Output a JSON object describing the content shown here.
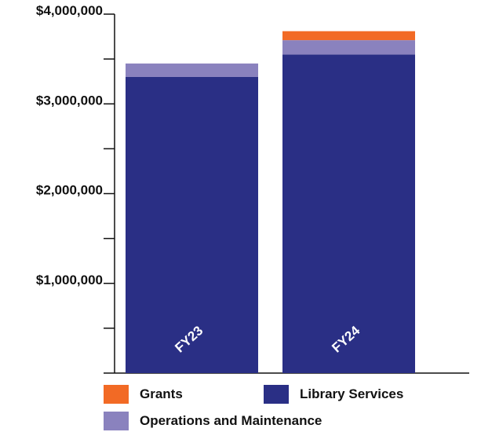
{
  "chart_data": {
    "type": "bar",
    "stacked": true,
    "categories": [
      "FY23",
      "FY24"
    ],
    "series": [
      {
        "name": "Library Services",
        "color": "#2a2f85",
        "values": [
          3300000,
          3550000
        ]
      },
      {
        "name": "Operations and Maintenance",
        "color": "#8a82be",
        "values": [
          150000,
          160000
        ]
      },
      {
        "name": "Grants",
        "color": "#f26a25",
        "values": [
          0,
          100000
        ]
      }
    ],
    "ylim": [
      0,
      4000000
    ],
    "yticks": [
      1000000,
      2000000,
      3000000,
      4000000
    ],
    "ytick_labels": [
      "$1,000,000",
      "$2,000,000",
      "$3,000,000",
      "$4,000,000"
    ],
    "minor_ticks": [
      500000,
      1500000,
      2500000,
      3500000
    ],
    "legend": {
      "placement": "bottom",
      "entries": [
        {
          "label": "Grants",
          "color": "#f26a25"
        },
        {
          "label": "Library Services",
          "color": "#2a2f85"
        },
        {
          "label": "Operations and Maintenance",
          "color": "#8a82be"
        }
      ]
    },
    "grid": false
  }
}
